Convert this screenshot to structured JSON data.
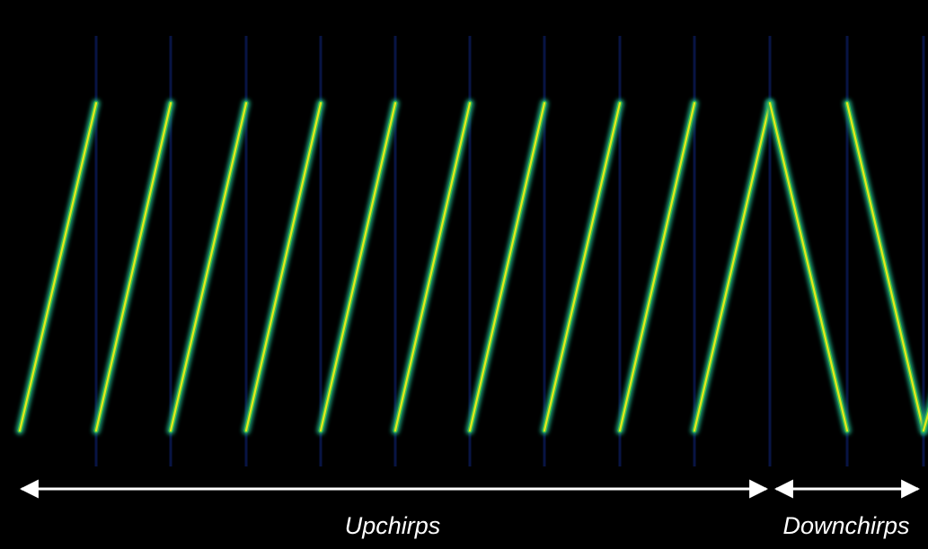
{
  "labels": {
    "upchirps": "Upchirps",
    "downchirps": "Downchirps"
  }
}
